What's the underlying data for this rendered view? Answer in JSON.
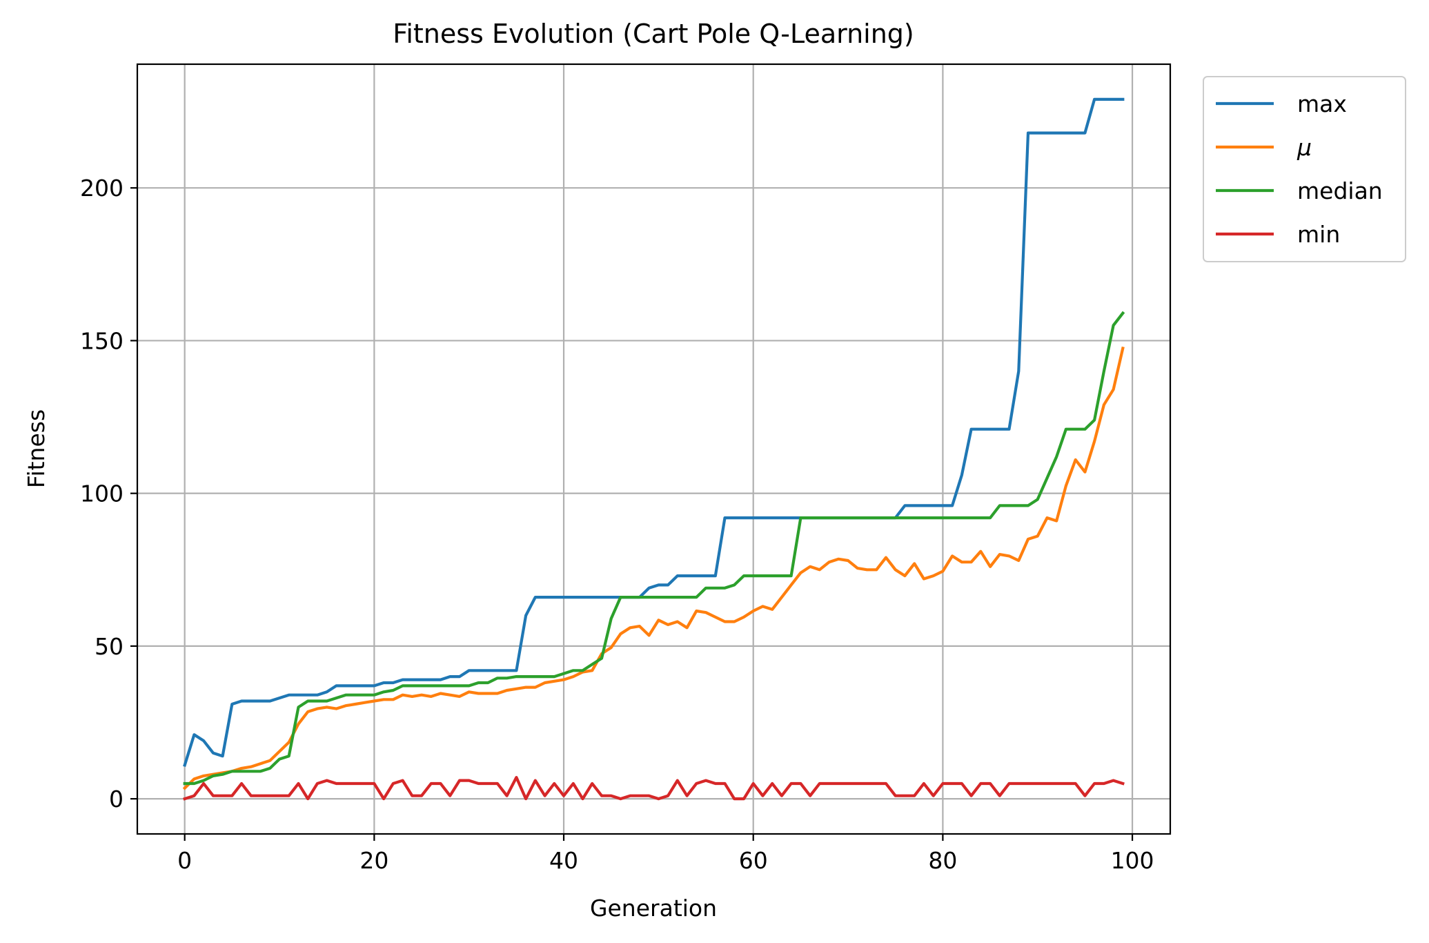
{
  "chart_data": {
    "type": "line",
    "title": "Fitness Evolution (Cart Pole Q-Learning)",
    "xlabel": "Generation",
    "ylabel": "Fitness",
    "xlim": [
      -5,
      104
    ],
    "ylim": [
      -11.5,
      240.5
    ],
    "xticks": [
      0,
      20,
      40,
      60,
      80,
      100
    ],
    "yticks": [
      0,
      50,
      100,
      150,
      200
    ],
    "grid": true,
    "legend_position": "outside-top-right",
    "x": [
      0,
      1,
      2,
      3,
      4,
      5,
      6,
      7,
      8,
      9,
      10,
      11,
      12,
      13,
      14,
      15,
      16,
      17,
      18,
      19,
      20,
      21,
      22,
      23,
      24,
      25,
      26,
      27,
      28,
      29,
      30,
      31,
      32,
      33,
      34,
      35,
      36,
      37,
      38,
      39,
      40,
      41,
      42,
      43,
      44,
      45,
      46,
      47,
      48,
      49,
      50,
      51,
      52,
      53,
      54,
      55,
      56,
      57,
      58,
      59,
      60,
      61,
      62,
      63,
      64,
      65,
      66,
      67,
      68,
      69,
      70,
      71,
      72,
      73,
      74,
      75,
      76,
      77,
      78,
      79,
      80,
      81,
      82,
      83,
      84,
      85,
      86,
      87,
      88,
      89,
      90,
      91,
      92,
      93,
      94,
      95,
      96,
      97,
      98,
      99
    ],
    "series": [
      {
        "name": "max",
        "color": "#1f77b4",
        "values": [
          11,
          21,
          19,
          15,
          14,
          31,
          32,
          32,
          32,
          32,
          33,
          34,
          34,
          34,
          34,
          35,
          37,
          37,
          37,
          37,
          37,
          38,
          38,
          39,
          39,
          39,
          39,
          39,
          40,
          40,
          42,
          42,
          42,
          42,
          42,
          42,
          60,
          66,
          66,
          66,
          66,
          66,
          66,
          66,
          66,
          66,
          66,
          66,
          66,
          69,
          70,
          70,
          73,
          73,
          73,
          73,
          73,
          92,
          92,
          92,
          92,
          92,
          92,
          92,
          92,
          92,
          92,
          92,
          92,
          92,
          92,
          92,
          92,
          92,
          92,
          92,
          96,
          96,
          96,
          96,
          96,
          96,
          106,
          121,
          121,
          121,
          121,
          121,
          140,
          218,
          218,
          218,
          218,
          218,
          218,
          218,
          229,
          229,
          229,
          229
        ]
      },
      {
        "name": "μ",
        "color": "#ff7f0e",
        "values": [
          3.5,
          6.5,
          7.5,
          8,
          8.5,
          9,
          10,
          10.5,
          11.5,
          12.5,
          15.5,
          18.5,
          24.5,
          28.5,
          29.5,
          30,
          29.5,
          30.5,
          31,
          31.5,
          32,
          32.5,
          32.5,
          34,
          33.5,
          34,
          33.5,
          34.5,
          34,
          33.5,
          35,
          34.5,
          34.5,
          34.5,
          35.5,
          36,
          36.5,
          36.5,
          38,
          38.5,
          39,
          40,
          41.5,
          42,
          47.5,
          49.5,
          54,
          56,
          56.5,
          53.5,
          58.5,
          57,
          58,
          56,
          61.5,
          61,
          59.5,
          58,
          58,
          59.5,
          61.5,
          63,
          62,
          66,
          70,
          74,
          76,
          75,
          77.5,
          78.5,
          78,
          75.5,
          75,
          75,
          79,
          75,
          73,
          77,
          72,
          73,
          74.5,
          79.5,
          77.5,
          77.5,
          81,
          76,
          80,
          79.5,
          78,
          85,
          86,
          92,
          91,
          102.5,
          111,
          107,
          117,
          129,
          134,
          147.5
        ]
      },
      {
        "name": "median",
        "color": "#2ca02c",
        "values": [
          5,
          5,
          6,
          7.5,
          8,
          9,
          9,
          9,
          9,
          10,
          13,
          14,
          30,
          32,
          32,
          32,
          33,
          34,
          34,
          34,
          34,
          35,
          35.5,
          37,
          37,
          37,
          37,
          37,
          37,
          37,
          37,
          38,
          38,
          39.5,
          39.5,
          40,
          40,
          40,
          40,
          40,
          41,
          42,
          42,
          44,
          46,
          59,
          66,
          66,
          66,
          66,
          66,
          66,
          66,
          66,
          66,
          69,
          69,
          69,
          70,
          73,
          73,
          73,
          73,
          73,
          73,
          92,
          92,
          92,
          92,
          92,
          92,
          92,
          92,
          92,
          92,
          92,
          92,
          92,
          92,
          92,
          92,
          92,
          92,
          92,
          92,
          92,
          96,
          96,
          96,
          96,
          98,
          105,
          112,
          121,
          121,
          121,
          124,
          140,
          155,
          159
        ]
      },
      {
        "name": "min",
        "color": "#d62728",
        "values": [
          0,
          1,
          5,
          1,
          1,
          1,
          5,
          1,
          1,
          1,
          1,
          1,
          5,
          0,
          5,
          6,
          5,
          5,
          5,
          5,
          5,
          0,
          5,
          6,
          1,
          1,
          5,
          5,
          1,
          6,
          6,
          5,
          5,
          5,
          1,
          7,
          0,
          6,
          1,
          5,
          1,
          5,
          0,
          5,
          1,
          1,
          0,
          1,
          1,
          1,
          0,
          1,
          6,
          1,
          5,
          6,
          5,
          5,
          0,
          0,
          5,
          1,
          5,
          1,
          5,
          5,
          1,
          5,
          5,
          5,
          5,
          5,
          5,
          5,
          5,
          1,
          1,
          1,
          5,
          1,
          5,
          5,
          5,
          1,
          5,
          5,
          1,
          5,
          5,
          5,
          5,
          5,
          5,
          5,
          5,
          1,
          5,
          5,
          6,
          5
        ]
      }
    ]
  }
}
